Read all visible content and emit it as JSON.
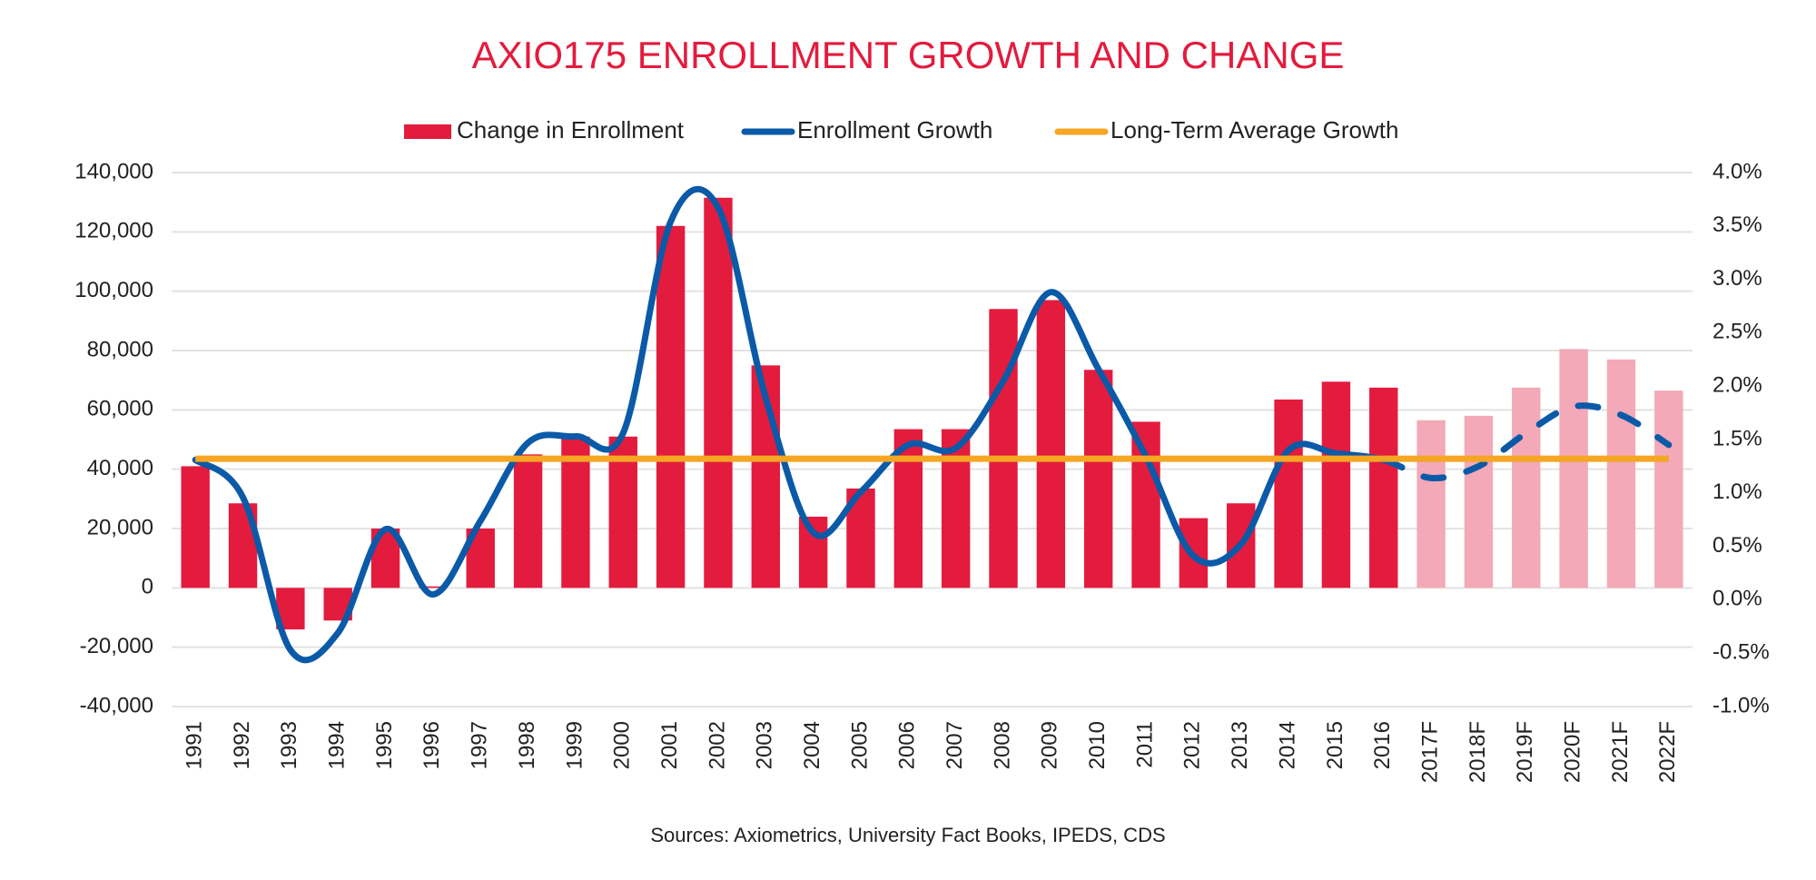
{
  "chart_data": {
    "type": "bar-line",
    "title": "AXIO175 ENROLLMENT GROWTH AND CHANGE",
    "source": "Sources: Axiometrics, University Fact Books, IPEDS, CDS",
    "categories": [
      "1991",
      "1992",
      "1993",
      "1994",
      "1995",
      "1996",
      "1997",
      "1998",
      "1999",
      "2000",
      "2001",
      "2002",
      "2003",
      "2004",
      "2005",
      "2006",
      "2007",
      "2008",
      "2009",
      "2010",
      "2011",
      "2012",
      "2013",
      "2014",
      "2015",
      "2016",
      "2017F",
      "2018F",
      "2019F",
      "2020F",
      "2021F",
      "2022F"
    ],
    "series": [
      {
        "name": "Change in Enrollment",
        "type": "bar",
        "color": "#e31b3d",
        "colors": [
          "#e31b3d",
          "#e31b3d",
          "#e31b3d",
          "#e31b3d",
          "#e31b3d",
          "#e31b3d",
          "#e31b3d",
          "#e31b3d",
          "#e31b3d",
          "#e31b3d",
          "#e31b3d",
          "#e31b3d",
          "#e31b3d",
          "#e31b3d",
          "#e31b3d",
          "#e31b3d",
          "#e31b3d",
          "#e31b3d",
          "#e31b3d",
          "#e31b3d",
          "#e31b3d",
          "#e31b3d",
          "#e31b3d",
          "#e31b3d",
          "#e31b3d",
          "#e31b3d",
          "#f3a9b7",
          "#f3a9b7",
          "#f3a9b7",
          "#f3a9b7",
          "#f3a9b7",
          "#f3a9b7"
        ],
        "values": [
          41000,
          28500,
          -14000,
          -11000,
          20000,
          500,
          20000,
          45000,
          51000,
          51000,
          122000,
          131500,
          75000,
          24000,
          33500,
          53500,
          53500,
          94000,
          97000,
          73500,
          56000,
          23500,
          28500,
          63500,
          69500,
          67500,
          56500,
          58000,
          67500,
          80500,
          77000,
          66500
        ]
      },
      {
        "name": "Enrollment Growth",
        "type": "line",
        "axis": "y2",
        "color": "#0a5aa8",
        "dashed": [
          false,
          false,
          false,
          false,
          false,
          false,
          false,
          false,
          false,
          false,
          false,
          false,
          false,
          false,
          false,
          false,
          false,
          false,
          false,
          false,
          false,
          false,
          false,
          false,
          false,
          false,
          true,
          true,
          true,
          true,
          true,
          true
        ],
        "values": [
          1.31,
          0.96,
          -0.47,
          -0.31,
          0.66,
          0.05,
          0.74,
          1.47,
          1.53,
          1.56,
          3.54,
          3.67,
          1.89,
          0.63,
          1.01,
          1.45,
          1.42,
          2.05,
          2.88,
          2.16,
          1.34,
          0.41,
          0.52,
          1.4,
          1.37,
          1.31,
          1.14,
          1.25,
          1.56,
          1.81,
          1.73,
          1.45
        ]
      },
      {
        "name": "Long-Term Average Growth",
        "type": "hline",
        "axis": "y2",
        "color": "#f5a623",
        "value": 1.32
      }
    ],
    "ylim": [
      -40000,
      140000
    ],
    "yticks": [
      {
        "value": -40000,
        "label": "-40,000"
      },
      {
        "value": -20000,
        "label": "-20,000"
      },
      0,
      {
        "value": 20000,
        "label": "20,000"
      },
      {
        "value": 40000,
        "label": "40,000"
      },
      {
        "value": 60000,
        "label": "60,000"
      },
      {
        "value": 80000,
        "label": "80,000"
      },
      {
        "value": 100000,
        "label": "100,000"
      },
      {
        "value": 120000,
        "label": "120,000"
      },
      {
        "value": 140000,
        "label": "140,000"
      }
    ],
    "y2lim": [
      -1,
      4
    ],
    "y2ticks": [
      {
        "value": -1,
        "label": "-1.0%"
      },
      {
        "value": -0.5,
        "label": "-0.5%"
      },
      {
        "value": 0,
        "label": "0.0%"
      },
      {
        "value": 0.5,
        "label": "0.5%"
      },
      {
        "value": 1,
        "label": "1.0%"
      },
      {
        "value": 1.5,
        "label": "1.5%"
      },
      {
        "value": 2,
        "label": "2.0%"
      },
      {
        "value": 2.5,
        "label": "2.5%"
      },
      {
        "value": 3,
        "label": "3.0%"
      },
      {
        "value": 3.5,
        "label": "3.5%"
      },
      {
        "value": 4,
        "label": "4.0%"
      }
    ],
    "grid": true,
    "legend": "top"
  }
}
